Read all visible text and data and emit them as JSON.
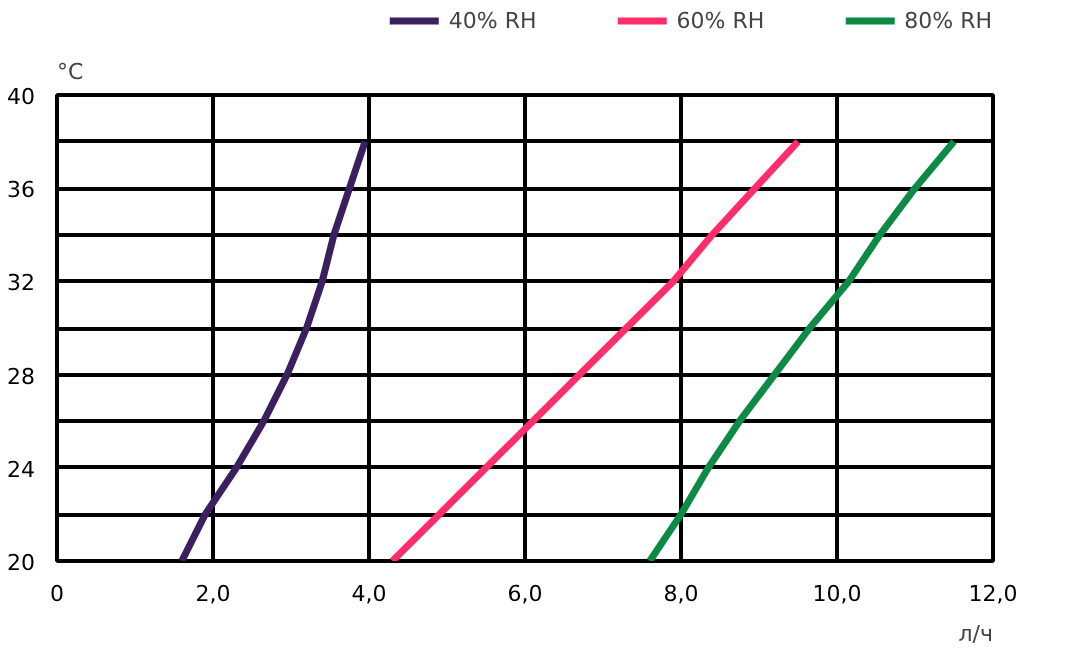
{
  "chart_data": {
    "type": "line",
    "xlabel": "л/ч",
    "ylabel": "°C",
    "xlim": [
      0,
      12
    ],
    "ylim": [
      20,
      40
    ],
    "xticks": [
      0,
      {
        "value": 2,
        "label": "2,0"
      },
      {
        "value": 4,
        "label": "4,0"
      },
      {
        "value": 6,
        "label": "6,0"
      },
      {
        "value": 8,
        "label": "8,0"
      },
      {
        "value": 10,
        "label": "10,0"
      },
      {
        "value": 12,
        "label": "12,0"
      }
    ],
    "yticks": [
      20,
      {
        "value": 22,
        "label": null
      },
      24,
      {
        "value": 26,
        "label": null
      },
      28,
      {
        "value": 30,
        "label": null
      },
      32,
      {
        "value": 34,
        "label": null
      },
      36,
      {
        "value": 38,
        "label": null
      },
      40
    ],
    "grid": true,
    "legend": "top",
    "line_style": "solid",
    "series": [
      {
        "name": "40% RH",
        "color": "#3b1f5e",
        "x": [
          1.6,
          1.9,
          2.3,
          2.65,
          2.95,
          3.2,
          3.4,
          3.55,
          3.75,
          3.95
        ],
        "values": [
          20,
          22,
          24,
          26,
          28,
          30,
          32,
          34,
          36,
          38
        ]
      },
      {
        "name": "60% RH",
        "color": "#ff2d6a",
        "x": [
          4.3,
          4.9,
          5.5,
          6.1,
          6.7,
          7.3,
          7.9,
          8.4,
          8.95,
          9.5
        ],
        "values": [
          20,
          22,
          24,
          26,
          28,
          30,
          32,
          34,
          36,
          38
        ]
      },
      {
        "name": "80% RH",
        "color": "#0d8a45",
        "x": [
          7.6,
          8.0,
          8.35,
          8.75,
          9.2,
          9.65,
          10.15,
          10.55,
          11.0,
          11.5
        ],
        "values": [
          20,
          22,
          24,
          26,
          28,
          30,
          32,
          34,
          36,
          38
        ]
      }
    ]
  }
}
